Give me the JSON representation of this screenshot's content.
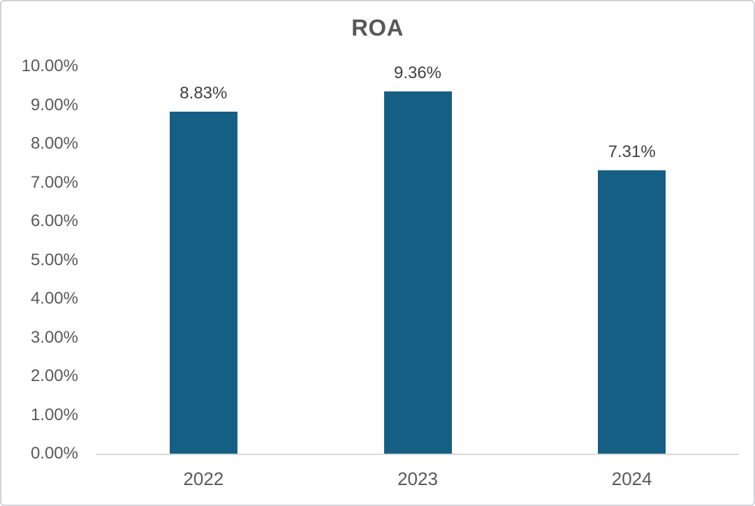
{
  "chart_data": {
    "type": "bar",
    "title": "ROA",
    "categories": [
      "2022",
      "2023",
      "2024"
    ],
    "values": [
      8.83,
      9.36,
      7.31
    ],
    "data_labels": [
      "8.83%",
      "9.36%",
      "7.31%"
    ],
    "y_tick_labels": [
      "0.00%",
      "1.00%",
      "2.00%",
      "3.00%",
      "4.00%",
      "5.00%",
      "6.00%",
      "7.00%",
      "8.00%",
      "9.00%",
      "10.00%"
    ],
    "ylim": [
      0,
      10
    ],
    "ytick_step": 1,
    "xlabel": "",
    "ylabel": "",
    "grid": false,
    "legend": false,
    "bar_color": "#155e84",
    "colors": {
      "title_text": "#595959",
      "tick_text": "#595959",
      "data_label_text": "#404040",
      "axis_line": "#d9d9d9",
      "chart_border": "#d2d2d7",
      "background": "#ffffff"
    }
  }
}
